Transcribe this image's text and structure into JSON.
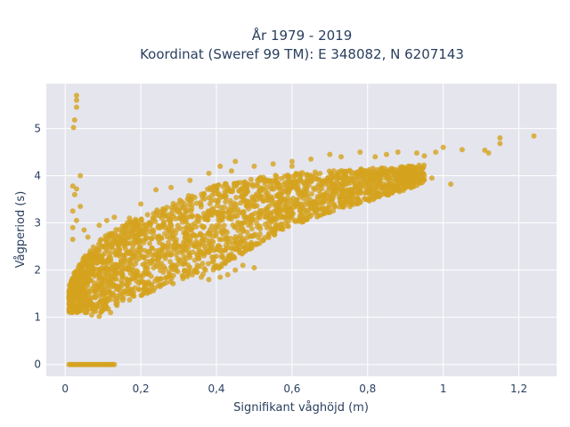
{
  "chart_data": {
    "type": "scatter",
    "title_line1": "År 1979 - 2019",
    "title_line2": "Koordinat (Sweref 99 TM): E 348082, N 6207143",
    "xlabel": "Signifikant våghöjd (m)",
    "ylabel": "Vågperiod (s)",
    "xlim": [
      -0.05,
      1.3
    ],
    "ylim": [
      -0.25,
      5.95
    ],
    "x_ticks": [
      0,
      0.2,
      0.4,
      0.6,
      0.8,
      1,
      1.2
    ],
    "x_tick_labels": [
      "0",
      "0,2",
      "0,4",
      "0,6",
      "0,8",
      "1",
      "1,2"
    ],
    "y_ticks": [
      0,
      1,
      2,
      3,
      4,
      5
    ],
    "y_tick_labels": [
      "0",
      "1",
      "2",
      "3",
      "4",
      "5"
    ],
    "grid": true,
    "colors": {
      "marker": "#d4a21e",
      "plot_bg": "#e5e5ee",
      "grid": "#ffffff"
    },
    "outlier_points": [
      [
        0.03,
        5.7
      ],
      [
        0.03,
        5.6
      ],
      [
        0.03,
        5.45
      ],
      [
        0.025,
        5.18
      ],
      [
        0.022,
        5.02
      ],
      [
        0.04,
        4.0
      ],
      [
        0.02,
        3.78
      ],
      [
        0.03,
        3.72
      ],
      [
        0.025,
        3.6
      ],
      [
        0.04,
        3.35
      ],
      [
        0.02,
        3.25
      ],
      [
        0.03,
        3.05
      ],
      [
        0.02,
        2.9
      ],
      [
        0.02,
        2.65
      ],
      [
        1.24,
        4.84
      ],
      [
        1.15,
        4.8
      ],
      [
        1.15,
        4.68
      ],
      [
        1.12,
        4.48
      ],
      [
        1.11,
        4.54
      ],
      [
        1.05,
        4.55
      ],
      [
        1.0,
        4.6
      ],
      [
        0.98,
        4.5
      ],
      [
        0.95,
        4.42
      ],
      [
        0.93,
        4.48
      ],
      [
        1.02,
        3.82
      ],
      [
        0.97,
        3.95
      ],
      [
        0.95,
        4.0
      ],
      [
        0.92,
        4.05
      ],
      [
        0.9,
        4.1
      ],
      [
        0.88,
        4.5
      ],
      [
        0.85,
        4.45
      ],
      [
        0.82,
        4.4
      ],
      [
        0.78,
        4.5
      ],
      [
        0.73,
        4.4
      ],
      [
        0.7,
        4.45
      ],
      [
        0.65,
        4.35
      ],
      [
        0.6,
        4.2
      ],
      [
        0.6,
        4.3
      ],
      [
        0.55,
        4.25
      ],
      [
        0.5,
        2.05
      ],
      [
        0.47,
        2.1
      ],
      [
        0.45,
        2.0
      ],
      [
        0.43,
        1.9
      ],
      [
        0.41,
        1.85
      ],
      [
        0.38,
        1.8
      ],
      [
        0.36,
        1.85
      ],
      [
        0.06,
        2.7
      ],
      [
        0.05,
        2.85
      ],
      [
        0.09,
        2.95
      ],
      [
        0.11,
        3.05
      ],
      [
        0.13,
        3.12
      ],
      [
        0.17,
        3.1
      ],
      [
        0.2,
        3.4
      ],
      [
        0.24,
        3.7
      ],
      [
        0.28,
        3.75
      ],
      [
        0.33,
        3.9
      ],
      [
        0.38,
        4.05
      ],
      [
        0.44,
        4.1
      ],
      [
        0.5,
        4.2
      ],
      [
        0.45,
        4.3
      ],
      [
        0.41,
        4.2
      ],
      [
        0.07,
        1.05
      ],
      [
        0.09,
        1.02
      ],
      [
        0.12,
        1.1
      ]
    ],
    "zero_band": {
      "x_range": [
        0.01,
        0.13
      ],
      "y": 0
    },
    "main_cloud": {
      "lower_edge": [
        [
          0.01,
          1.1
        ],
        [
          0.1,
          1.1
        ],
        [
          0.15,
          1.3
        ],
        [
          0.2,
          1.45
        ],
        [
          0.3,
          1.75
        ],
        [
          0.4,
          2.0
        ],
        [
          0.5,
          2.5
        ],
        [
          0.6,
          2.95
        ],
        [
          0.7,
          3.2
        ],
        [
          0.8,
          3.45
        ],
        [
          0.9,
          3.7
        ],
        [
          0.95,
          3.85
        ]
      ],
      "upper_edge": [
        [
          0.01,
          1.75
        ],
        [
          0.05,
          2.3
        ],
        [
          0.1,
          2.7
        ],
        [
          0.15,
          2.95
        ],
        [
          0.2,
          3.15
        ],
        [
          0.3,
          3.5
        ],
        [
          0.4,
          3.8
        ],
        [
          0.5,
          3.95
        ],
        [
          0.6,
          4.05
        ],
        [
          0.7,
          4.1
        ],
        [
          0.8,
          4.15
        ],
        [
          0.9,
          4.2
        ],
        [
          0.95,
          4.25
        ]
      ]
    }
  }
}
